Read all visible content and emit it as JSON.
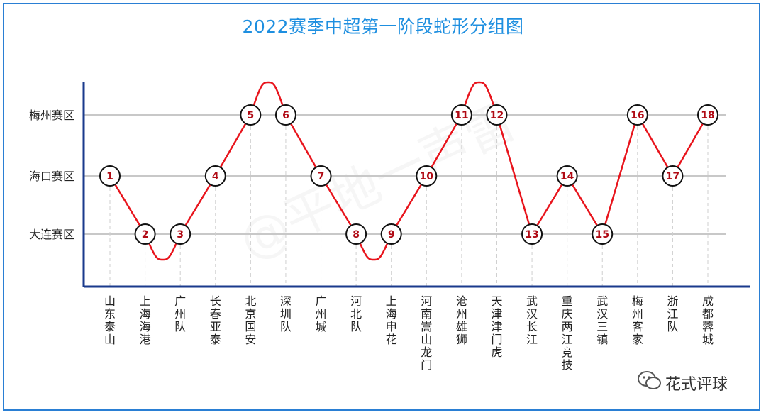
{
  "chart_data": {
    "type": "line",
    "title": "2022赛季中超第一阶段蛇形分组图",
    "ylabel": "",
    "xlabel": "",
    "y_categories": [
      "梅州赛区",
      "海口赛区",
      "大连赛区"
    ],
    "points": [
      {
        "rank": "1",
        "team": "山东泰山",
        "zone": "海口赛区"
      },
      {
        "rank": "2",
        "team": "上海海港",
        "zone": "大连赛区"
      },
      {
        "rank": "3",
        "team": "广州队",
        "zone": "大连赛区"
      },
      {
        "rank": "4",
        "team": "长春亚泰",
        "zone": "海口赛区"
      },
      {
        "rank": "5",
        "team": "北京国安",
        "zone": "梅州赛区"
      },
      {
        "rank": "6",
        "team": "深圳队",
        "zone": "梅州赛区"
      },
      {
        "rank": "7",
        "team": "广州城",
        "zone": "海口赛区"
      },
      {
        "rank": "8",
        "team": "河北队",
        "zone": "大连赛区"
      },
      {
        "rank": "9",
        "team": "上海申花",
        "zone": "大连赛区"
      },
      {
        "rank": "10",
        "team": "河南嵩山龙门",
        "zone": "海口赛区"
      },
      {
        "rank": "11",
        "team": "沧州雄狮",
        "zone": "梅州赛区"
      },
      {
        "rank": "12",
        "team": "天津津门虎",
        "zone": "梅州赛区"
      },
      {
        "rank": "13",
        "team": "武汉长江",
        "zone": "大连赛区"
      },
      {
        "rank": "14",
        "team": "重庆两江竞技",
        "zone": "海口赛区"
      },
      {
        "rank": "15",
        "team": "武汉三镇",
        "zone": "大连赛区"
      },
      {
        "rank": "16",
        "team": "梅州客家",
        "zone": "梅州赛区"
      },
      {
        "rank": "17",
        "team": "浙江队",
        "zone": "海口赛区"
      },
      {
        "rank": "18",
        "team": "成都蓉城",
        "zone": "梅州赛区"
      }
    ],
    "grid": true,
    "colors": {
      "line": "#e8141c",
      "axis": "#1a3a8c",
      "grid": "#c8c8c8",
      "title": "#1e8fe0",
      "marker_text": "#b00a14"
    }
  },
  "watermark": {
    "text": "@平地一声雷",
    "brand": "花式评球",
    "icon": "wechat-icon"
  }
}
